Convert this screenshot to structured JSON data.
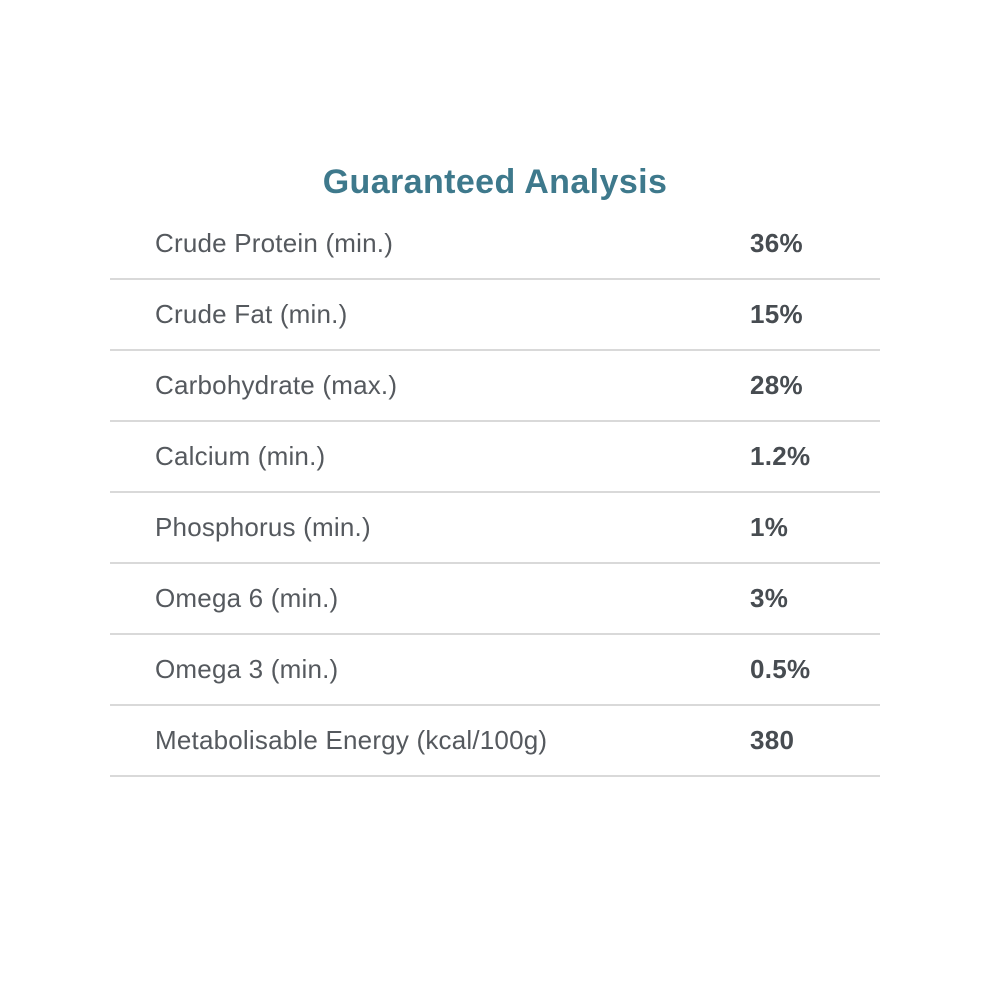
{
  "page": {
    "title": "Guaranteed Analysis"
  },
  "colors": {
    "background": "#ffffff",
    "title": "#3e798c",
    "label": "#55595e",
    "value": "#474c51",
    "divider": "#d9d9d9"
  },
  "table": {
    "rows": [
      {
        "label": "Crude Protein (min.)",
        "value": "36%"
      },
      {
        "label": "Crude Fat (min.)",
        "value": "15%"
      },
      {
        "label": "Carbohydrate (max.)",
        "value": "28%"
      },
      {
        "label": "Calcium (min.)",
        "value": "1.2%"
      },
      {
        "label": "Phosphorus (min.)",
        "value": "1%"
      },
      {
        "label": "Omega 6 (min.)",
        "value": "3%"
      },
      {
        "label": "Omega 3 (min.)",
        "value": "0.5%"
      },
      {
        "label": "Metabolisable Energy (kcal/100g)",
        "value": "380"
      }
    ]
  }
}
